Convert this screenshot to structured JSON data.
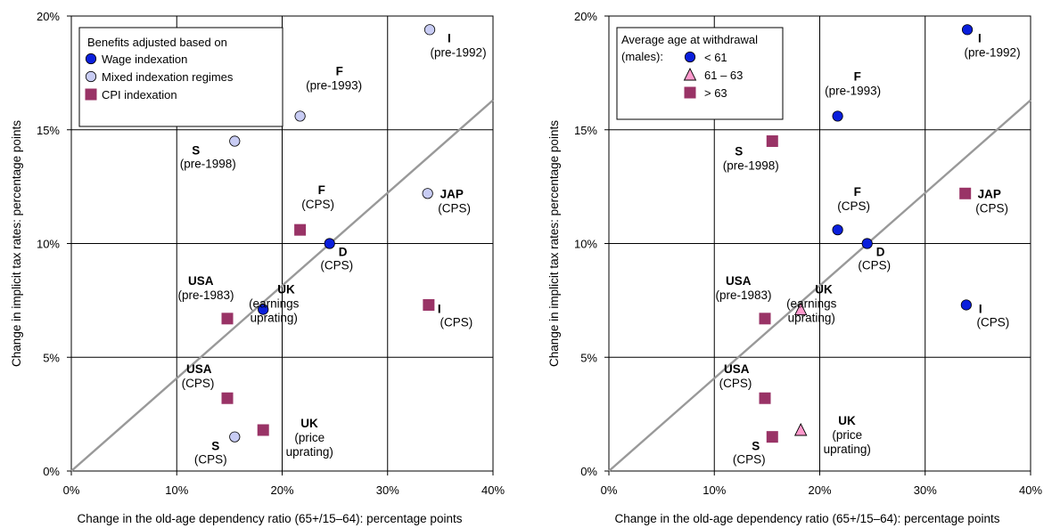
{
  "chart_data": [
    {
      "type": "scatter",
      "xlabel": "Change in the old-age dependency ratio (65+/15–64): percentage points",
      "ylabel": "Change in implicit tax rates: percentage points",
      "xlim": [
        0,
        40
      ],
      "ylim": [
        0,
        20
      ],
      "x_ticks": [
        "0%",
        "10%",
        "20%",
        "30%",
        "40%"
      ],
      "y_ticks": [
        "0%",
        "5%",
        "10%",
        "15%",
        "20%"
      ],
      "grid": true,
      "reference_line": "diagonal from (0, 0) to (40, 16.3)",
      "legend": {
        "title": "Benefits adjusted based on",
        "placement": "top-left",
        "entries": [
          {
            "name": "Wage indexation",
            "marker": "circle",
            "color": "#0a1fdc"
          },
          {
            "name": "Mixed indexation regimes",
            "marker": "circle",
            "color": "#c8ccf4"
          },
          {
            "name": "CPI indexation",
            "marker": "square",
            "color": "#993366"
          }
        ]
      },
      "series": [
        {
          "name": "Wage indexation",
          "points": [
            {
              "x": 24.5,
              "y": 10.0,
              "label": "D",
              "sub": [
                "(CPS)"
              ]
            },
            {
              "x": 18.2,
              "y": 7.1,
              "label": "UK",
              "sub": [
                "(earnings",
                "uprating)"
              ]
            }
          ]
        },
        {
          "name": "Mixed indexation regimes",
          "points": [
            {
              "x": 34.0,
              "y": 19.4,
              "label": "I",
              "sub": [
                "(pre-1992)"
              ]
            },
            {
              "x": 21.7,
              "y": 15.6,
              "label": "F",
              "sub": [
                "(pre-1993)"
              ]
            },
            {
              "x": 15.5,
              "y": 14.5,
              "label": "S",
              "sub": [
                "(pre-1998)"
              ]
            },
            {
              "x": 33.8,
              "y": 12.2,
              "label": "JAP",
              "sub": [
                "(CPS)"
              ]
            },
            {
              "x": 15.5,
              "y": 1.5,
              "label": "S",
              "sub": [
                "(CPS)"
              ]
            }
          ]
        },
        {
          "name": "CPI indexation",
          "points": [
            {
              "x": 21.7,
              "y": 10.6,
              "label": "F",
              "sub": [
                "(CPS)"
              ]
            },
            {
              "x": 14.8,
              "y": 6.7,
              "label": "USA",
              "sub": [
                "(pre-1983)"
              ]
            },
            {
              "x": 33.9,
              "y": 7.3,
              "label": "I",
              "sub": [
                "(CPS)"
              ]
            },
            {
              "x": 14.8,
              "y": 3.2,
              "label": "USA",
              "sub": [
                "(CPS)"
              ]
            },
            {
              "x": 18.2,
              "y": 1.8,
              "label": "UK",
              "sub": [
                "(price",
                "uprating)"
              ]
            }
          ]
        }
      ]
    },
    {
      "type": "scatter",
      "xlabel": "Change in the old-age dependency ratio (65+/15–64): percentage points",
      "ylabel": "Change in implicit tax rates: percentage points",
      "xlim": [
        0,
        40
      ],
      "ylim": [
        0,
        20
      ],
      "x_ticks": [
        "0%",
        "10%",
        "20%",
        "30%",
        "40%"
      ],
      "y_ticks": [
        "0%",
        "5%",
        "10%",
        "15%",
        "20%"
      ],
      "grid": true,
      "reference_line": "diagonal from (0, 0) to (40, 16.3)",
      "legend": {
        "title": "Average age at withdrawal",
        "title2": "(males):",
        "placement": "top-left",
        "entries": [
          {
            "name": "< 61",
            "marker": "circle",
            "color": "#0a1fdc"
          },
          {
            "name": "61 – 63",
            "marker": "triangle",
            "color": "#ff99cc"
          },
          {
            "name": "> 63",
            "marker": "square",
            "color": "#993366"
          }
        ]
      },
      "series": [
        {
          "name": "< 61",
          "points": [
            {
              "x": 34.0,
              "y": 19.4,
              "label": "I",
              "sub": [
                "(pre-1992)"
              ]
            },
            {
              "x": 21.7,
              "y": 15.6,
              "label": "F",
              "sub": [
                "(pre-1993)"
              ]
            },
            {
              "x": 21.7,
              "y": 10.6,
              "label": "F",
              "sub": [
                "(CPS)"
              ]
            },
            {
              "x": 24.5,
              "y": 10.0,
              "label": "D",
              "sub": [
                "(CPS)"
              ]
            },
            {
              "x": 33.9,
              "y": 7.3,
              "label": "I",
              "sub": [
                "(CPS)"
              ]
            }
          ]
        },
        {
          "name": "61 – 63",
          "points": [
            {
              "x": 18.2,
              "y": 7.1,
              "label": "UK",
              "sub": [
                "(earnings",
                "uprating)"
              ]
            },
            {
              "x": 18.2,
              "y": 1.8,
              "label": "UK",
              "sub": [
                "(price",
                "uprating)"
              ]
            }
          ]
        },
        {
          "name": "> 63",
          "points": [
            {
              "x": 15.5,
              "y": 14.5,
              "label": "S",
              "sub": [
                "(pre-1998)"
              ]
            },
            {
              "x": 33.8,
              "y": 12.2,
              "label": "JAP",
              "sub": [
                "(CPS)"
              ]
            },
            {
              "x": 14.8,
              "y": 6.7,
              "label": "USA",
              "sub": [
                "(pre-1983)"
              ]
            },
            {
              "x": 14.8,
              "y": 3.2,
              "label": "USA",
              "sub": [
                "(CPS)"
              ]
            },
            {
              "x": 15.5,
              "y": 1.5,
              "label": "S",
              "sub": [
                "(CPS)"
              ]
            }
          ]
        }
      ]
    }
  ]
}
